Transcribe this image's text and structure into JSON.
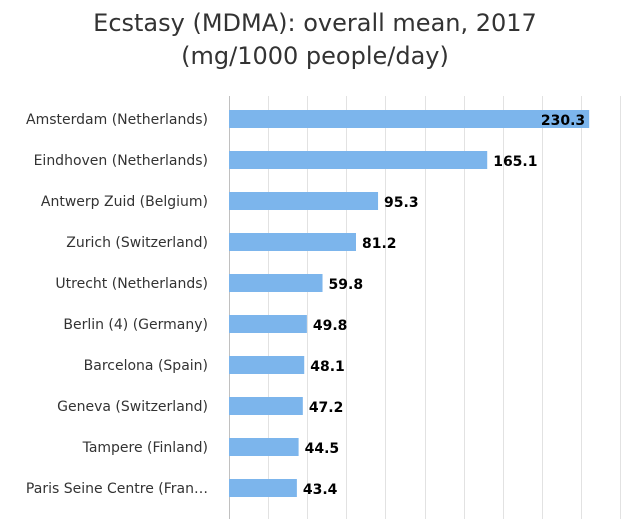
{
  "chart_data": {
    "type": "bar",
    "orientation": "horizontal",
    "title": "Ecstasy (MDMA): overall mean, 2017",
    "subtitle": "(mg/1000 people/day)",
    "xlabel": "",
    "ylabel": "",
    "categories": [
      "Amsterdam (Netherlands)",
      "Eindhoven (Netherlands)",
      "Antwerp Zuid (Belgium)",
      "Zurich (Switzerland)",
      "Utrecht (Netherlands)",
      "Berlin (4) (Germany)",
      "Barcelona (Spain)",
      "Geneva (Switzerland)",
      "Tampere (Finland)",
      "Paris Seine Centre (Fran…"
    ],
    "values": [
      230.3,
      165.1,
      95.3,
      81.2,
      59.8,
      49.8,
      48.1,
      47.2,
      44.5,
      43.4
    ],
    "xlim": [
      0,
      250
    ],
    "grid": true,
    "legend": "none",
    "bar_color": "#7cb5ec",
    "label_color": "#333333",
    "value_label_color": "#000000"
  }
}
